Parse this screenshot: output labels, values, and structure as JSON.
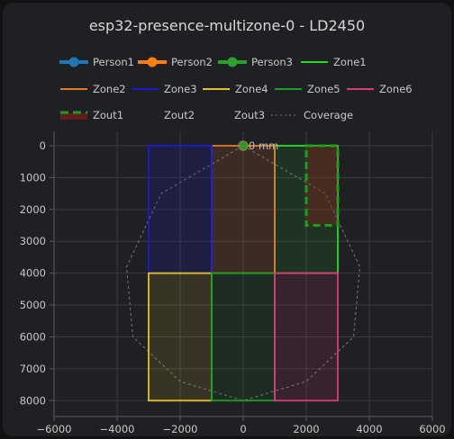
{
  "card": {
    "title": "esp32-presence-multizone-0 - LD2450"
  },
  "chart_data": {
    "type": "scatter",
    "title": "esp32-presence-multizone-0 - LD2450",
    "xlim": [
      -6000,
      6000
    ],
    "ylim": [
      0,
      8500
    ],
    "y_reversed": true,
    "grid": true,
    "legend_placement": "top",
    "x_ticks": [
      -6000,
      -4000,
      -2000,
      0,
      2000,
      4000,
      6000
    ],
    "y_ticks": [
      0,
      1000,
      2000,
      3000,
      4000,
      5000,
      6000,
      7000,
      8000
    ],
    "persons": [
      {
        "name": "Person1",
        "color": "#1f77b4",
        "x": null,
        "y": null
      },
      {
        "name": "Person2",
        "color": "#ff7f0e",
        "x": null,
        "y": null
      },
      {
        "name": "Person3",
        "color": "#2ca02c",
        "x": 0,
        "y": 0,
        "label": "0 mm"
      }
    ],
    "zones": [
      {
        "name": "Zone1",
        "color": "#22dd22",
        "fill": "rgba(34,221,34,0.10)",
        "x1": 1000,
        "y1": 0,
        "x2": 3000,
        "y2": 4000
      },
      {
        "name": "Zone2",
        "color": "#e07b20",
        "fill": "rgba(224,123,32,0.14)",
        "x1": -1000,
        "y1": 0,
        "x2": 1000,
        "y2": 4000
      },
      {
        "name": "Zone3",
        "color": "#1a1ad6",
        "fill": "rgba(26,26,214,0.16)",
        "x1": -3000,
        "y1": 0,
        "x2": -1000,
        "y2": 4000
      },
      {
        "name": "Zone4",
        "color": "#e3c12a",
        "fill": "rgba(227,193,42,0.13)",
        "x1": -3000,
        "y1": 4000,
        "x2": -1000,
        "y2": 8000
      },
      {
        "name": "Zone5",
        "color": "#1f9e1f",
        "fill": "rgba(31,158,31,0.11)",
        "x1": -1000,
        "y1": 4000,
        "x2": 1000,
        "y2": 8000
      },
      {
        "name": "Zone6",
        "color": "#dd3b77",
        "fill": "rgba(221,59,119,0.12)",
        "x1": 1000,
        "y1": 4000,
        "x2": 3000,
        "y2": 8000
      }
    ],
    "exclusion_zones": [
      {
        "name": "Zout1",
        "color": "#18a018",
        "fill": "rgba(150,30,30,0.35)",
        "x1": 2000,
        "y1": 0,
        "x2": 3000,
        "y2": 2500
      },
      {
        "name": "Zout2",
        "color": null,
        "x1": null,
        "y1": null,
        "x2": null,
        "y2": null
      },
      {
        "name": "Zout3",
        "color": null,
        "x1": null,
        "y1": null,
        "x2": null,
        "y2": null
      }
    ],
    "coverage": {
      "name": "Coverage",
      "color": "#777777",
      "points": [
        [
          0,
          0
        ],
        [
          2600,
          1500
        ],
        [
          3700,
          3800
        ],
        [
          3500,
          6000
        ],
        [
          2000,
          7400
        ],
        [
          0,
          8000
        ],
        [
          -2000,
          7400
        ],
        [
          -3500,
          6000
        ],
        [
          -3700,
          3800
        ],
        [
          -2600,
          1500
        ],
        [
          0,
          0
        ]
      ]
    }
  }
}
